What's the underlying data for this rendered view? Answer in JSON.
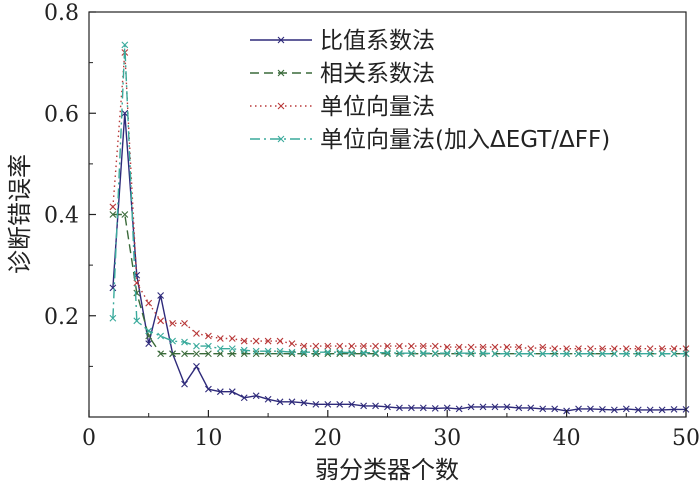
{
  "chart_data": {
    "type": "line",
    "title": "",
    "xlabel": "弱分类器个数",
    "ylabel": "诊断错误率",
    "xlim": [
      0,
      50
    ],
    "ylim": [
      0,
      0.8
    ],
    "xticks": [
      0,
      10,
      20,
      30,
      40,
      50
    ],
    "yticks": [
      0.2,
      0.4,
      0.6,
      0.8
    ],
    "ytick_labels": [
      "0.2",
      "0.4",
      "0.6",
      "0.8"
    ],
    "xtick_labels": [
      "0",
      "10",
      "20",
      "30",
      "40",
      "50"
    ],
    "grid": false,
    "legend": "top-right",
    "series": [
      {
        "name": "比值系数法",
        "color": "#2e2a7a",
        "dash": "solid",
        "x": [
          2,
          3,
          4,
          5,
          6,
          7,
          8,
          9,
          10,
          11,
          12,
          13,
          14,
          15,
          16,
          17,
          18,
          19,
          20,
          21,
          22,
          23,
          24,
          25,
          26,
          27,
          28,
          29,
          30,
          31,
          32,
          33,
          34,
          35,
          36,
          37,
          38,
          39,
          40,
          41,
          42,
          43,
          44,
          45,
          46,
          47,
          48,
          49,
          50
        ],
        "y": [
          0.255,
          0.6,
          0.28,
          0.145,
          0.24,
          0.125,
          0.065,
          0.1,
          0.055,
          0.05,
          0.05,
          0.038,
          0.042,
          0.035,
          0.03,
          0.03,
          0.028,
          0.025,
          0.025,
          0.025,
          0.025,
          0.022,
          0.022,
          0.02,
          0.018,
          0.018,
          0.018,
          0.017,
          0.018,
          0.016,
          0.02,
          0.02,
          0.02,
          0.02,
          0.018,
          0.018,
          0.016,
          0.016,
          0.012,
          0.016,
          0.016,
          0.015,
          0.014,
          0.016,
          0.014,
          0.014,
          0.014,
          0.015,
          0.015
        ]
      },
      {
        "name": "相关系数法",
        "color": "#3a6a3a",
        "dash": "dashed",
        "x": [
          2,
          3,
          4,
          5,
          6,
          7,
          8,
          9,
          10,
          11,
          12,
          13,
          14,
          15,
          16,
          17,
          18,
          19,
          20,
          21,
          22,
          23,
          24,
          25,
          26,
          27,
          28,
          29,
          30,
          31,
          32,
          33,
          34,
          35,
          36,
          37,
          38,
          39,
          40,
          41,
          42,
          43,
          44,
          45,
          46,
          47,
          48,
          49,
          50
        ],
        "y": [
          0.4,
          0.4,
          0.245,
          0.16,
          0.125,
          0.125,
          0.125,
          0.125,
          0.125,
          0.125,
          0.125,
          0.125,
          0.125,
          0.125,
          0.125,
          0.125,
          0.125,
          0.125,
          0.125,
          0.125,
          0.125,
          0.125,
          0.125,
          0.125,
          0.125,
          0.125,
          0.125,
          0.125,
          0.125,
          0.125,
          0.125,
          0.125,
          0.125,
          0.125,
          0.125,
          0.125,
          0.125,
          0.125,
          0.125,
          0.125,
          0.125,
          0.125,
          0.125,
          0.125,
          0.125,
          0.125,
          0.125,
          0.125,
          0.125
        ]
      },
      {
        "name": "单位向量法",
        "color": "#b83838",
        "dash": "dotted",
        "x": [
          2,
          3,
          4,
          5,
          6,
          7,
          8,
          9,
          10,
          11,
          12,
          13,
          14,
          15,
          16,
          17,
          18,
          19,
          20,
          21,
          22,
          23,
          24,
          25,
          26,
          27,
          28,
          29,
          30,
          31,
          32,
          33,
          34,
          35,
          36,
          37,
          38,
          39,
          40,
          41,
          42,
          43,
          44,
          45,
          46,
          47,
          48,
          49,
          50
        ],
        "y": [
          0.415,
          0.72,
          0.265,
          0.225,
          0.19,
          0.185,
          0.185,
          0.165,
          0.16,
          0.155,
          0.155,
          0.15,
          0.15,
          0.15,
          0.15,
          0.145,
          0.14,
          0.14,
          0.14,
          0.14,
          0.14,
          0.14,
          0.14,
          0.14,
          0.14,
          0.14,
          0.14,
          0.14,
          0.138,
          0.138,
          0.138,
          0.138,
          0.138,
          0.138,
          0.138,
          0.135,
          0.138,
          0.135,
          0.135,
          0.135,
          0.135,
          0.135,
          0.135,
          0.135,
          0.135,
          0.135,
          0.135,
          0.135,
          0.135
        ]
      },
      {
        "name": "单位向量法(加入ΔEGT/ΔFF)",
        "color": "#3aaa9c",
        "dash": "dashdot",
        "x": [
          2,
          3,
          4,
          5,
          6,
          7,
          8,
          9,
          10,
          11,
          12,
          13,
          14,
          15,
          16,
          17,
          18,
          19,
          20,
          21,
          22,
          23,
          24,
          25,
          26,
          27,
          28,
          29,
          30,
          31,
          32,
          33,
          34,
          35,
          36,
          37,
          38,
          39,
          40,
          41,
          42,
          43,
          44,
          45,
          46,
          47,
          48,
          49,
          50
        ],
        "y": [
          0.195,
          0.735,
          0.19,
          0.17,
          0.16,
          0.15,
          0.148,
          0.14,
          0.14,
          0.135,
          0.135,
          0.132,
          0.13,
          0.13,
          0.13,
          0.128,
          0.128,
          0.128,
          0.128,
          0.128,
          0.127,
          0.127,
          0.127,
          0.127,
          0.126,
          0.126,
          0.126,
          0.126,
          0.126,
          0.126,
          0.126,
          0.126,
          0.125,
          0.125,
          0.125,
          0.125,
          0.125,
          0.125,
          0.125,
          0.125,
          0.125,
          0.125,
          0.125,
          0.125,
          0.125,
          0.125,
          0.125,
          0.125,
          0.125
        ]
      }
    ]
  }
}
